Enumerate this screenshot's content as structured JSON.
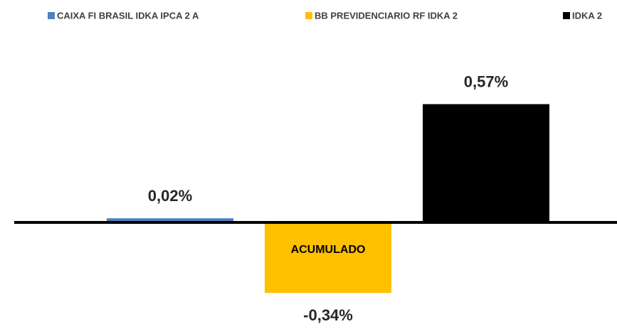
{
  "chart_data": {
    "type": "bar",
    "categories": [
      "ACUMULADO"
    ],
    "series": [
      {
        "name": "CAIXA FI BRASIL IDKA IPCA 2 A",
        "color": "#4f81bd",
        "values": [
          0.02
        ],
        "value_labels": [
          "0,02%"
        ]
      },
      {
        "name": "BB PREVIDENCIARIO RF IDKA 2",
        "color": "#ffc000",
        "values": [
          -0.34
        ],
        "value_labels": [
          "-0,34%"
        ]
      },
      {
        "name": "IDKA 2",
        "color": "#000000",
        "values": [
          0.57
        ],
        "value_labels": [
          "0,57%"
        ]
      }
    ],
    "ylim": [
      -0.5,
      0.7
    ],
    "legend": "top"
  }
}
